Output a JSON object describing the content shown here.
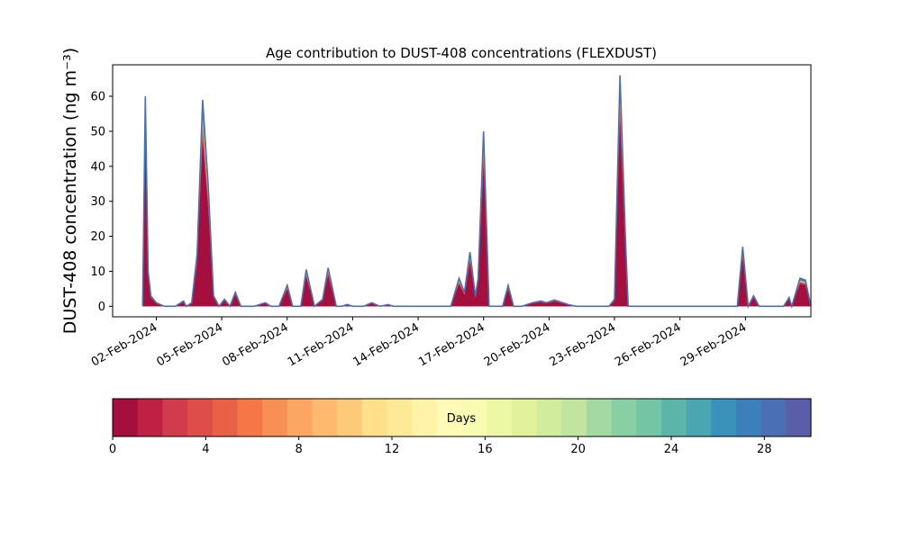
{
  "chart_data": {
    "type": "area",
    "title": "Age contribution to DUST-408 concentrations (FLEXDUST)",
    "ylabel": "DUST-408 concentration (ng m⁻³)",
    "xlabel": "",
    "ylim": [
      -3,
      69
    ],
    "yticks": [
      0,
      10,
      20,
      30,
      40,
      50,
      60
    ],
    "xlim": [
      "2024-01-31",
      "2024-03-03"
    ],
    "xticks": [
      "02-Feb-2024",
      "05-Feb-2024",
      "08-Feb-2024",
      "11-Feb-2024",
      "14-Feb-2024",
      "17-Feb-2024",
      "20-Feb-2024",
      "23-Feb-2024",
      "26-Feb-2024",
      "29-Feb-2024"
    ],
    "xtick_dates": [
      "2024-02-02",
      "2024-02-05",
      "2024-02-08",
      "2024-02-11",
      "2024-02-14",
      "2024-02-17",
      "2024-02-20",
      "2024-02-23",
      "2024-02-26",
      "2024-02-29"
    ],
    "total_series": {
      "name": "",
      "points": [
        [
          "2024-02-01T09:00",
          0
        ],
        [
          "2024-02-01T12:00",
          60
        ],
        [
          "2024-02-01T15:00",
          10
        ],
        [
          "2024-02-01T18:00",
          3
        ],
        [
          "2024-02-02T00:00",
          1
        ],
        [
          "2024-02-02T09:00",
          0
        ],
        [
          "2024-02-02T21:00",
          0
        ],
        [
          "2024-02-03T06:00",
          1.5
        ],
        [
          "2024-02-03T09:00",
          0
        ],
        [
          "2024-02-03T15:00",
          1
        ],
        [
          "2024-02-03T21:00",
          15
        ],
        [
          "2024-02-04T03:00",
          59
        ],
        [
          "2024-02-04T09:00",
          35
        ],
        [
          "2024-02-04T15:00",
          3
        ],
        [
          "2024-02-04T21:00",
          0
        ],
        [
          "2024-02-05T03:00",
          2
        ],
        [
          "2024-02-05T09:00",
          0
        ],
        [
          "2024-02-05T15:00",
          4
        ],
        [
          "2024-02-05T21:00",
          0
        ],
        [
          "2024-02-06T12:00",
          0
        ],
        [
          "2024-02-07T00:00",
          1
        ],
        [
          "2024-02-07T06:00",
          0
        ],
        [
          "2024-02-07T15:00",
          0
        ],
        [
          "2024-02-08T00:00",
          6
        ],
        [
          "2024-02-08T06:00",
          0
        ],
        [
          "2024-02-08T15:00",
          0
        ],
        [
          "2024-02-08T21:00",
          10.5
        ],
        [
          "2024-02-09T06:00",
          0
        ],
        [
          "2024-02-09T15:00",
          2
        ],
        [
          "2024-02-09T21:00",
          11
        ],
        [
          "2024-02-10T06:00",
          0
        ],
        [
          "2024-02-10T12:00",
          0
        ],
        [
          "2024-02-10T18:00",
          0.5
        ],
        [
          "2024-02-11T00:00",
          0
        ],
        [
          "2024-02-11T12:00",
          0
        ],
        [
          "2024-02-11T21:00",
          1
        ],
        [
          "2024-02-12T06:00",
          0
        ],
        [
          "2024-02-12T15:00",
          0.5
        ],
        [
          "2024-02-12T21:00",
          0
        ],
        [
          "2024-02-15T12:00",
          0
        ],
        [
          "2024-02-15T21:00",
          8
        ],
        [
          "2024-02-16T03:00",
          4
        ],
        [
          "2024-02-16T09:00",
          15.5
        ],
        [
          "2024-02-16T15:00",
          3
        ],
        [
          "2024-02-16T18:00",
          8
        ],
        [
          "2024-02-17T00:00",
          50
        ],
        [
          "2024-02-17T06:00",
          0
        ],
        [
          "2024-02-17T12:00",
          0
        ],
        [
          "2024-02-17T21:00",
          0
        ],
        [
          "2024-02-18T03:00",
          6
        ],
        [
          "2024-02-18T09:00",
          0
        ],
        [
          "2024-02-18T18:00",
          0
        ],
        [
          "2024-02-19T06:00",
          1
        ],
        [
          "2024-02-19T15:00",
          1.5
        ],
        [
          "2024-02-19T21:00",
          1
        ],
        [
          "2024-02-20T06:00",
          1.8
        ],
        [
          "2024-02-20T15:00",
          1
        ],
        [
          "2024-02-20T21:00",
          0.5
        ],
        [
          "2024-02-21T06:00",
          0
        ],
        [
          "2024-02-22T18:00",
          0
        ],
        [
          "2024-02-23T00:00",
          2
        ],
        [
          "2024-02-23T06:00",
          66
        ],
        [
          "2024-02-23T12:00",
          20
        ],
        [
          "2024-02-23T15:00",
          0
        ],
        [
          "2024-02-24T00:00",
          0
        ],
        [
          "2024-02-28T15:00",
          0
        ],
        [
          "2024-02-28T21:00",
          17
        ],
        [
          "2024-02-29T03:00",
          0
        ],
        [
          "2024-02-29T09:00",
          3
        ],
        [
          "2024-02-29T15:00",
          0
        ],
        [
          "2024-03-01T18:00",
          0
        ],
        [
          "2024-03-02T00:00",
          2.5
        ],
        [
          "2024-03-02T03:00",
          0
        ],
        [
          "2024-03-02T12:00",
          8
        ],
        [
          "2024-03-02T18:00",
          7.5
        ],
        [
          "2024-03-03T00:00",
          0
        ]
      ]
    },
    "colorbar": {
      "label": "Days",
      "range": [
        0,
        30
      ],
      "ticks": [
        0,
        4,
        8,
        12,
        16,
        20,
        24,
        28
      ],
      "colors": [
        "#a50f3d",
        "#be2144",
        "#d13b4b",
        "#df4d4a",
        "#ea6047",
        "#f57748",
        "#f89055",
        "#fba662",
        "#fdba6f",
        "#fdca79",
        "#fee08b",
        "#fee999",
        "#fff3a8",
        "#fffab6",
        "#f8fcb2",
        "#eef8a4",
        "#e1f29a",
        "#d1ec9c",
        "#bfe5a0",
        "#a4d9a4",
        "#88cfa5",
        "#73c5a4",
        "#5db5a9",
        "#4aa6b1",
        "#3a92bb",
        "#3d80b9",
        "#4a6fb2",
        "#5a5ea8"
      ]
    }
  }
}
